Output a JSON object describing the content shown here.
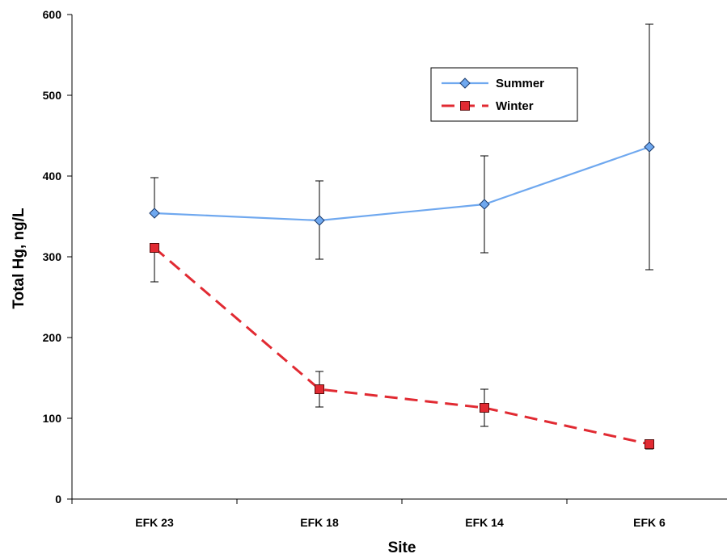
{
  "chart_data": {
    "type": "line",
    "title": "",
    "xlabel": "Site",
    "ylabel": "Total Hg, ng/L",
    "categories": [
      "EFK 23",
      "EFK 18",
      "EFK 14",
      "EFK 6"
    ],
    "ylim": [
      0,
      600
    ],
    "yticks": [
      "0",
      "100",
      "200",
      "300",
      "400",
      "500",
      "600"
    ],
    "grid": false,
    "legend_position": "top-right",
    "series": [
      {
        "name": "Summer",
        "color": "#6fa8ef",
        "marker": "diamond",
        "line_style": "solid",
        "values": [
          354,
          345,
          365,
          436
        ],
        "error_low": [
          354,
          297,
          305,
          284
        ],
        "error_high": [
          398,
          394,
          425,
          588
        ]
      },
      {
        "name": "Winter",
        "color": "#e12a32",
        "marker": "square",
        "line_style": "dashed",
        "values": [
          311,
          136,
          113,
          68
        ],
        "error_low": [
          269,
          114,
          90,
          62
        ],
        "error_high": [
          311,
          158,
          136,
          72
        ]
      }
    ]
  }
}
